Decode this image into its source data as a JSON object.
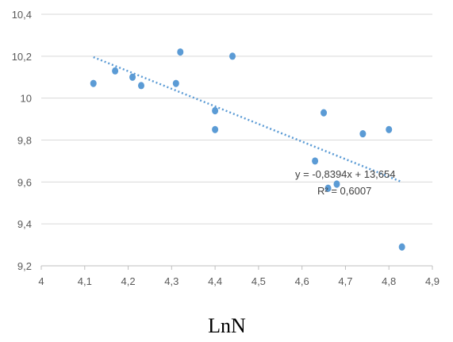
{
  "chart_data": {
    "type": "scatter",
    "title": "",
    "xlabel": "LnN",
    "ylabel": "",
    "xlim": [
      4,
      4.9
    ],
    "ylim": [
      9.2,
      10.4
    ],
    "x_tick_labels": [
      "4",
      "4,1",
      "4,2",
      "4,3",
      "4,4",
      "4,5",
      "4,6",
      "4,7",
      "4,8",
      "4,9"
    ],
    "y_tick_labels": [
      "9,2",
      "9,4",
      "9,6",
      "9,8",
      "10",
      "10,2",
      "10,4"
    ],
    "grid": "horizontal",
    "series": [
      {
        "x": [
          4.12,
          4.17,
          4.21,
          4.23,
          4.31,
          4.32,
          4.4,
          4.4,
          4.44,
          4.63,
          4.65,
          4.66,
          4.68,
          4.74,
          4.8,
          4.83
        ],
        "y": [
          10.07,
          10.13,
          10.1,
          10.06,
          10.07,
          10.22,
          9.94,
          9.85,
          10.2,
          9.7,
          9.93,
          9.57,
          9.59,
          9.83,
          9.85,
          9.29
        ]
      }
    ],
    "trendline": {
      "slope": -0.8394,
      "intercept": 13.654,
      "x_range": [
        4.12,
        4.83
      ],
      "equation_text": "y = -0,8394x + 13,654",
      "r2_text": "R² = 0,6007"
    },
    "colors": {
      "point": "#5b9bd5",
      "trendline": "#5b9bd5",
      "grid": "#d9d9d9",
      "axis": "#bfbfbf"
    }
  }
}
